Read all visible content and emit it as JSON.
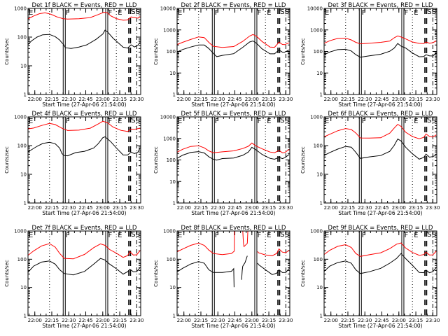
{
  "chart_data": [
    {
      "type": "line",
      "title": "Det 1f BLACK = Events, RED = LLD",
      "xlabel": "Start Time (27-Apr-06 21:54:00)",
      "ylabel": "Counts/sec",
      "yscale": "log",
      "ylim": [
        1,
        1000
      ],
      "yticks": [
        "1",
        "10",
        "100",
        "1000"
      ],
      "series": [
        {
          "name": "LLD",
          "color": "#ff0000",
          "x": [
            0,
            5,
            10,
            15,
            19,
            22,
            25,
            31,
            35,
            45,
            55,
            62,
            67,
            70,
            73,
            78,
            84,
            88,
            91,
            94,
            97,
            99
          ],
          "y": [
            430,
            520,
            620,
            700,
            680,
            620,
            520,
            420,
            400,
            430,
            500,
            650,
            750,
            680,
            520,
            430,
            400,
            420,
            520,
            470,
            430,
            500
          ]
        },
        {
          "name": "Events",
          "color": "#000000",
          "x": [
            0,
            3,
            8,
            13,
            19,
            24,
            28,
            30,
            31,
            33,
            38,
            45,
            52,
            60,
            66,
            68,
            70,
            72,
            75,
            80,
            84,
            88,
            91,
            94,
            97,
            99
          ],
          "y": [
            55,
            70,
            95,
            120,
            130,
            110,
            80,
            60,
            55,
            42,
            42,
            48,
            55,
            80,
            120,
            170,
            160,
            135,
            95,
            60,
            42,
            40,
            55,
            48,
            55,
            65
          ]
        }
      ]
    },
    {
      "type": "line",
      "title": "Det 2f BLACK = Events, RED = LLD",
      "xlabel": "Start Time (27-Apr-06 21:54:00)",
      "ylabel": "Counts/sec",
      "yscale": "log",
      "ylim": [
        1,
        10000
      ],
      "yticks": [
        "1",
        "10",
        "100",
        "1000",
        "10000"
      ],
      "series": [
        {
          "name": "LLD",
          "color": "#ff0000",
          "x": [
            0,
            5,
            12,
            19,
            24,
            28,
            32,
            40,
            50,
            58,
            64,
            67,
            70,
            75,
            82,
            86,
            90,
            93,
            95,
            99
          ],
          "y": [
            210,
            280,
            380,
            480,
            420,
            250,
            170,
            160,
            180,
            300,
            500,
            580,
            500,
            300,
            170,
            160,
            260,
            200,
            200,
            260
          ]
        },
        {
          "name": "Events",
          "color": "#000000",
          "x": [
            0,
            5,
            12,
            19,
            24,
            28,
            32,
            35,
            40,
            50,
            58,
            64,
            67,
            70,
            75,
            82,
            86,
            90,
            93,
            95,
            99
          ],
          "y": [
            95,
            130,
            170,
            200,
            190,
            130,
            80,
            60,
            70,
            80,
            150,
            260,
            300,
            250,
            140,
            80,
            75,
            110,
            90,
            95,
            125
          ]
        }
      ]
    },
    {
      "type": "line",
      "title": "Det 3f BLACK = Events, RED = LLD",
      "xlabel": "Start Time (27-Apr-06 21:54:00)",
      "ylabel": "Counts/sec",
      "yscale": "log",
      "ylim": [
        1,
        10000
      ],
      "yticks": [
        "1",
        "10",
        "100",
        "1000",
        "10000"
      ],
      "series": [
        {
          "name": "LLD",
          "color": "#ff0000",
          "x": [
            0,
            5,
            12,
            19,
            24,
            28,
            32,
            40,
            50,
            58,
            62,
            65,
            68,
            72,
            78,
            84,
            88,
            90,
            93,
            96,
            99
          ],
          "y": [
            240,
            300,
            380,
            410,
            360,
            280,
            230,
            230,
            250,
            300,
            450,
            560,
            480,
            370,
            260,
            230,
            240,
            290,
            250,
            250,
            290
          ]
        },
        {
          "name": "Events",
          "color": "#000000",
          "x": [
            0,
            5,
            12,
            19,
            24,
            28,
            32,
            40,
            50,
            58,
            62,
            65,
            68,
            72,
            78,
            84,
            88,
            90,
            93,
            96,
            99
          ],
          "y": [
            70,
            90,
            115,
            125,
            110,
            75,
            55,
            60,
            70,
            100,
            150,
            250,
            180,
            140,
            80,
            55,
            60,
            75,
            65,
            60,
            80
          ]
        }
      ]
    },
    {
      "type": "line",
      "title": "Det 4f BLACK = Events, RED = LLD",
      "xlabel": "Start Time (27-Apr-06 21:54:00)",
      "ylabel": "Counts/sec",
      "yscale": "log",
      "ylim": [
        1,
        1000
      ],
      "yticks": [
        "1",
        "10",
        "100",
        "1000"
      ],
      "series": [
        {
          "name": "LLD",
          "color": "#ff0000",
          "x": [
            0,
            5,
            12,
            19,
            24,
            30,
            35,
            45,
            55,
            62,
            66,
            70,
            75,
            82,
            88,
            91,
            94,
            97,
            99
          ],
          "y": [
            380,
            430,
            530,
            600,
            520,
            380,
            330,
            360,
            430,
            580,
            680,
            600,
            430,
            350,
            330,
            390,
            360,
            370,
            390
          ]
        },
        {
          "name": "Events",
          "color": "#000000",
          "x": [
            0,
            3,
            8,
            13,
            19,
            24,
            28,
            30,
            32,
            35,
            42,
            50,
            58,
            62,
            66,
            68,
            70,
            73,
            78,
            84,
            88,
            91,
            94,
            97,
            99
          ],
          "y": [
            60,
            75,
            100,
            120,
            125,
            110,
            80,
            55,
            48,
            45,
            55,
            60,
            80,
            120,
            200,
            210,
            170,
            130,
            80,
            48,
            50,
            62,
            52,
            56,
            80
          ]
        }
      ]
    },
    {
      "type": "line",
      "title": "Det 5f BLACK = Events, RED = LLD",
      "xlabel": "Start Time (27-Apr-06 21:54:00)",
      "ylabel": "Counts/sec",
      "yscale": "log",
      "ylim": [
        1,
        10000
      ],
      "yticks": [
        "1",
        "10",
        "100",
        "1000",
        "10000"
      ],
      "series": [
        {
          "name": "LLD",
          "color": "#ff0000",
          "x": [
            0,
            5,
            12,
            19,
            24,
            28,
            32,
            40,
            50,
            58,
            63,
            66,
            70,
            75,
            82,
            86,
            90,
            93,
            95,
            99
          ],
          "y": [
            230,
            300,
            400,
            450,
            380,
            280,
            220,
            230,
            250,
            330,
            450,
            650,
            450,
            320,
            220,
            210,
            280,
            230,
            230,
            300
          ]
        },
        {
          "name": "Events",
          "color": "#000000",
          "x": [
            0,
            5,
            12,
            19,
            24,
            28,
            32,
            35,
            40,
            50,
            58,
            63,
            66,
            70,
            75,
            82,
            86,
            90,
            93,
            95,
            99
          ],
          "y": [
            120,
            160,
            210,
            240,
            220,
            150,
            110,
            95,
            110,
            120,
            170,
            250,
            400,
            280,
            170,
            115,
            110,
            140,
            120,
            125,
            170
          ]
        }
      ]
    },
    {
      "type": "line",
      "title": "Det 6f BLACK = Events, RED = LLD",
      "xlabel": "Start Time (27-Apr-06 21:54:00)",
      "ylabel": "Counts/sec",
      "yscale": "log",
      "ylim": [
        1,
        1000
      ],
      "yticks": [
        "1",
        "10",
        "100",
        "1000"
      ],
      "series": [
        {
          "name": "LLD",
          "color": "#ff0000",
          "x": [
            0,
            5,
            12,
            19,
            24,
            28,
            32,
            40,
            50,
            58,
            62,
            65,
            68,
            72,
            78,
            84,
            88,
            90,
            93,
            96,
            99
          ],
          "y": [
            200,
            260,
            350,
            400,
            350,
            260,
            180,
            190,
            200,
            280,
            400,
            520,
            450,
            300,
            220,
            180,
            190,
            240,
            200,
            200,
            250
          ]
        },
        {
          "name": "Events",
          "color": "#000000",
          "x": [
            0,
            5,
            12,
            19,
            24,
            28,
            32,
            40,
            50,
            58,
            62,
            65,
            68,
            72,
            78,
            84,
            88,
            90,
            93,
            96,
            99
          ],
          "y": [
            45,
            60,
            80,
            95,
            85,
            55,
            35,
            42,
            48,
            65,
            100,
            160,
            140,
            90,
            55,
            35,
            38,
            48,
            38,
            42,
            50
          ]
        }
      ]
    },
    {
      "type": "line",
      "title": "Det 7f BLACK = Events, RED = LLD",
      "xlabel": "Start Time (27-Apr-06 21:54:00)",
      "ylabel": "Counts/sec",
      "yscale": "log",
      "ylim": [
        1,
        1000
      ],
      "yticks": [
        "1",
        "10",
        "100",
        "1000"
      ],
      "series": [
        {
          "name": "LLD",
          "color": "#ff0000",
          "x": [
            0,
            5,
            12,
            19,
            24,
            28,
            32,
            40,
            50,
            58,
            64,
            68,
            72,
            78,
            84,
            88,
            90,
            93,
            96,
            99
          ],
          "y": [
            140,
            190,
            280,
            350,
            280,
            170,
            110,
            100,
            140,
            250,
            360,
            330,
            230,
            160,
            110,
            130,
            190,
            150,
            150,
            200
          ]
        },
        {
          "name": "Events",
          "color": "#000000",
          "x": [
            0,
            5,
            12,
            19,
            24,
            28,
            32,
            40,
            50,
            58,
            64,
            68,
            72,
            78,
            84,
            88,
            90,
            93,
            96,
            99
          ],
          "y": [
            35,
            55,
            75,
            85,
            70,
            45,
            32,
            27,
            35,
            65,
            110,
            100,
            70,
            45,
            28,
            35,
            45,
            38,
            38,
            50
          ]
        }
      ]
    },
    {
      "type": "line",
      "title": "Det 8f BLACK = Events, RED = LLD",
      "xlabel": "Start Time (27-Apr-06 21:54:00)",
      "ylabel": "Counts/sec",
      "yscale": "log",
      "ylim": [
        1,
        1000
      ],
      "yticks": [
        "1",
        "10",
        "100",
        "1000"
      ],
      "series": [
        {
          "name": "LLD",
          "color": "#ff0000",
          "x": [
            0,
            5,
            12,
            19,
            24,
            28,
            32,
            40,
            48,
            50.5,
            50.6,
            null,
            58,
            58.5,
            59,
            62,
            62.5,
            null,
            71,
            72,
            78,
            84,
            88,
            90,
            93,
            96,
            99
          ],
          "y": [
            180,
            240,
            330,
            380,
            300,
            200,
            155,
            150,
            170,
            200,
            1000,
            null,
            1000,
            400,
            300,
            380,
            1000,
            null,
            180,
            170,
            150,
            140,
            160,
            220,
            170,
            170,
            220
          ]
        },
        {
          "name": "Events",
          "color": "#000000",
          "x": [
            0,
            5,
            12,
            19,
            24,
            28,
            32,
            40,
            48,
            50,
            50.3,
            null,
            57,
            57.5,
            58,
            60,
            62,
            null,
            71,
            72,
            78,
            84,
            88,
            90,
            93,
            96,
            99
          ],
          "y": [
            35,
            50,
            72,
            85,
            70,
            40,
            33,
            35,
            40,
            48,
            10,
            null,
            18,
            40,
            60,
            80,
            130,
            null,
            70,
            65,
            45,
            30,
            32,
            40,
            32,
            34,
            50
          ]
        }
      ]
    },
    {
      "type": "line",
      "title": "Det 9f BLACK = Events, RED = LLD",
      "xlabel": "Start Time (27-Apr-06 21:54:00)",
      "ylabel": "Counts/sec",
      "yscale": "log",
      "ylim": [
        1,
        1000
      ],
      "yticks": [
        "1",
        "10",
        "100",
        "1000"
      ],
      "series": [
        {
          "name": "LLD",
          "color": "#ff0000",
          "x": [
            0,
            5,
            12,
            19,
            24,
            28,
            32,
            40,
            50,
            58,
            64,
            68,
            72,
            78,
            84,
            88,
            90,
            93,
            96,
            99
          ],
          "y": [
            150,
            200,
            270,
            320,
            270,
            170,
            130,
            140,
            160,
            230,
            350,
            400,
            260,
            170,
            130,
            140,
            180,
            150,
            150,
            190
          ]
        },
        {
          "name": "Events",
          "color": "#000000",
          "x": [
            0,
            5,
            12,
            19,
            24,
            28,
            32,
            40,
            50,
            58,
            64,
            68,
            72,
            78,
            84,
            88,
            90,
            93,
            96,
            99
          ],
          "y": [
            38,
            55,
            72,
            85,
            75,
            45,
            32,
            35,
            45,
            70,
            110,
            170,
            110,
            60,
            32,
            32,
            42,
            35,
            38,
            50
          ]
        }
      ]
    }
  ],
  "shared": {
    "xticks": [
      "22:00",
      "22:15",
      "22:30",
      "22:45",
      "23:00",
      "23:15",
      "23:30"
    ],
    "xtick_minutes": [
      6,
      21,
      36,
      51,
      66,
      81,
      96
    ],
    "xrange_minutes": [
      0,
      99.5
    ],
    "markers": [
      {
        "kind": "dotted",
        "t": 19,
        "label": ""
      },
      {
        "kind": "double-solid",
        "t": 32,
        "label": "F"
      },
      {
        "kind": "double-solid",
        "t": 69.5,
        "label": "F"
      },
      {
        "kind": "dotted",
        "t": 78,
        "label": "E"
      },
      {
        "kind": "dashed",
        "t": 89,
        "label": ""
      },
      {
        "kind": "dashed",
        "t": 90.5,
        "label": ""
      },
      {
        "kind": "dashdot",
        "t": 96,
        "label": ""
      }
    ],
    "corner_label_left": "E",
    "corner_label_right": "SS"
  }
}
